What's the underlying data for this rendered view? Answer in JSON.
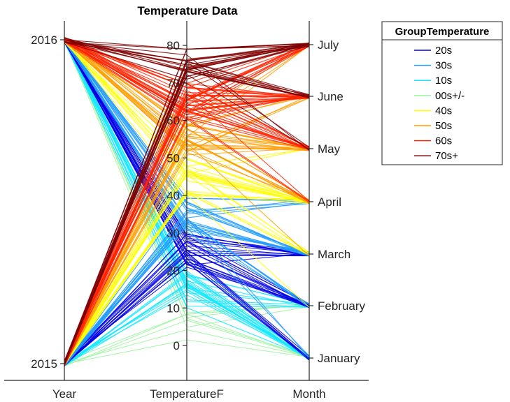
{
  "chart_data": {
    "type": "parallel-coordinates",
    "title": "Temperature Data",
    "axes": [
      {
        "name": "Year",
        "ticks": [
          2015,
          2016
        ],
        "range": [
          2015,
          2016
        ]
      },
      {
        "name": "TemperatureF",
        "ticks": [
          0,
          10,
          20,
          30,
          40,
          50,
          60,
          70,
          80
        ],
        "range": [
          -5,
          82
        ]
      },
      {
        "name": "Month",
        "ticks": [
          "January",
          "February",
          "March",
          "April",
          "May",
          "June",
          "July"
        ],
        "range": [
          1,
          7
        ]
      }
    ],
    "legend": {
      "title": "GroupTemperature",
      "placement": "right",
      "groups": [
        {
          "name": "20s",
          "color": "#0000e6",
          "temp_range": [
            20,
            30
          ]
        },
        {
          "name": "30s",
          "color": "#1f9bff",
          "temp_range": [
            30,
            40
          ]
        },
        {
          "name": "10s",
          "color": "#17e8ff",
          "temp_range": [
            10,
            20
          ]
        },
        {
          "name": "00s+/-",
          "color": "#9cf5a0",
          "temp_range": [
            -4,
            10
          ]
        },
        {
          "name": "40s",
          "color": "#ffff00",
          "temp_range": [
            40,
            50
          ]
        },
        {
          "name": "50s",
          "color": "#ff9d00",
          "temp_range": [
            50,
            60
          ]
        },
        {
          "name": "60s",
          "color": "#ff2300",
          "temp_range": [
            60,
            70
          ]
        },
        {
          "name": "70s+",
          "color": "#800000",
          "temp_range": [
            70,
            80
          ]
        }
      ]
    },
    "grid": false
  }
}
